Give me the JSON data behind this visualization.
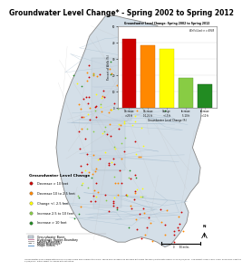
{
  "title": "Groundwater Level Change* - Spring 2002 to Spring 2012",
  "title_fontsize": 5.5,
  "chart_title": "Groundwater Level Change: Spring 2002 to Spring 2012",
  "chart_subtitle": "Wells Used: n = 6938",
  "bar_values": [
    42,
    38,
    36,
    18,
    14
  ],
  "bar_colors": [
    "#cc0000",
    "#ff8800",
    "#ffff00",
    "#88cc44",
    "#228B22"
  ],
  "ylabel": "Percent of Wells (%)",
  "xlabel": "Groundwater Level Change (ft)",
  "ylim": [
    0,
    50
  ],
  "yticks": [
    0,
    10,
    20,
    30,
    40,
    50
  ],
  "bg_color": "#e8eef4",
  "map_water_color": "#c8d8e8",
  "map_land_color": "#d4dfe8",
  "dot_colors": [
    "#cc0000",
    "#ff8800",
    "#ffff00",
    "#88cc44",
    "#228B22"
  ],
  "dot_labels": [
    "Decrease > 10 feet",
    "Decrease 10 to 2.5 feet",
    "Change +/- 2.5 feet",
    "Increase 2.5 to 10 feet",
    "Increase > 10 feet"
  ],
  "footnote": "*Groundwater level change determined from wells from measurements in each  Spring and fall based on available data from the NWIS/Water Data Library as of 04/30/2014.  See project layers 1:50,17,000, 2010CGRS Updated 04/30/2014  Data subject to change without notice."
}
